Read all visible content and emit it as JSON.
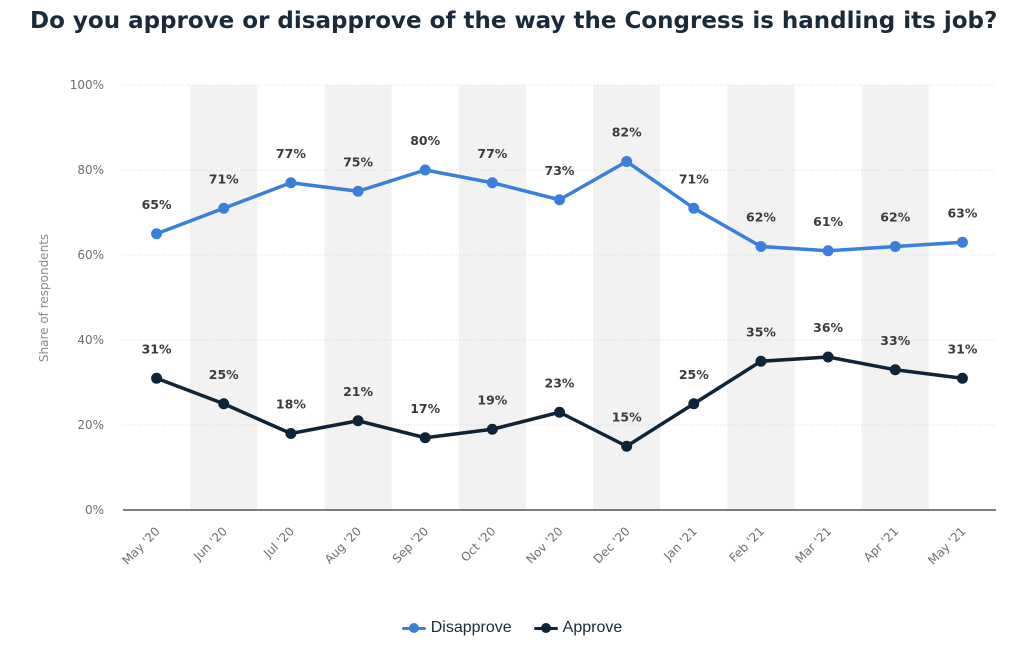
{
  "title": "Do you approve or disapprove of the way the Congress is handling its job?",
  "colors": {
    "disapprove": "#3a7fdc",
    "approve": "#0f2436",
    "band": "#f2f2f2",
    "grid": "#dadada",
    "axis": "#333333"
  },
  "chart_data": {
    "type": "line",
    "title": "Do you approve or disapprove of the way the Congress is handling its job?",
    "xlabel": "",
    "ylabel": "Share of respondents",
    "categories": [
      "May '20",
      "Jun '20",
      "Jul '20",
      "Aug '20",
      "Sep '20",
      "Oct '20",
      "Nov '20",
      "Dec '20",
      "Jan '21",
      "Feb '21",
      "Mar '21",
      "Apr '21",
      "May '21"
    ],
    "ylim": [
      0,
      100
    ],
    "yticks": [
      "0%",
      "20%",
      "40%",
      "60%",
      "80%",
      "100%"
    ],
    "grid": true,
    "legend_position": "bottom-center",
    "series": [
      {
        "name": "Disapprove",
        "color": "#3a7fdc",
        "values": [
          65,
          71,
          77,
          75,
          80,
          77,
          73,
          82,
          71,
          62,
          61,
          62,
          63
        ],
        "labels": [
          "65%",
          "71%",
          "77%",
          "75%",
          "80%",
          "77%",
          "73%",
          "82%",
          "71%",
          "62%",
          "61%",
          "62%",
          "63%"
        ]
      },
      {
        "name": "Approve",
        "color": "#0f2436",
        "values": [
          31,
          25,
          18,
          21,
          17,
          19,
          23,
          15,
          25,
          35,
          36,
          33,
          31
        ],
        "labels": [
          "31%",
          "25%",
          "18%",
          "21%",
          "17%",
          "19%",
          "23%",
          "15%",
          "25%",
          "35%",
          "36%",
          "33%",
          "31%"
        ]
      }
    ]
  }
}
